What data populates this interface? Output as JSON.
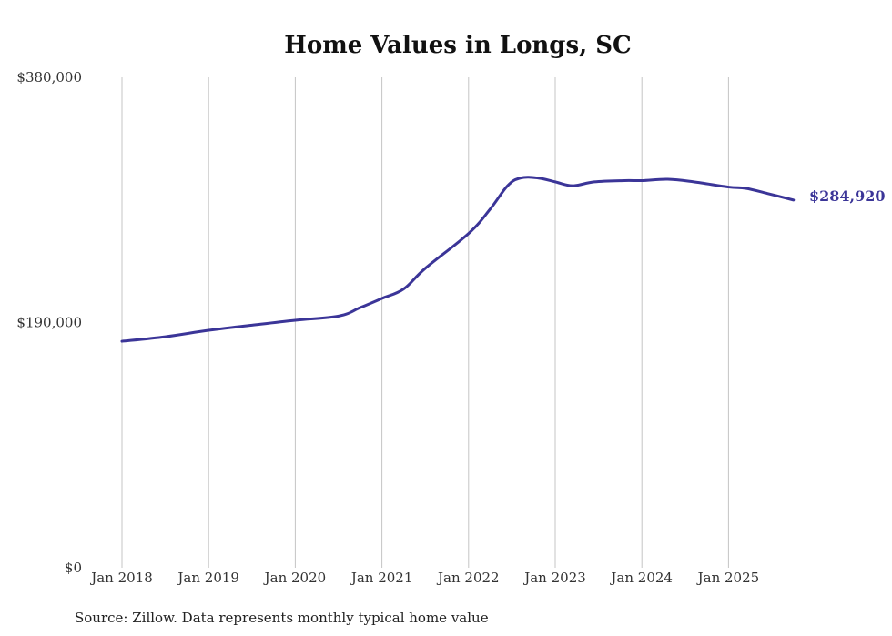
{
  "chart_data": {
    "type": "line",
    "title": "Home Values in Longs, SC",
    "xlabel": "",
    "ylabel": "",
    "ylim": [
      0,
      380000
    ],
    "xlim": [
      2018.0,
      2025.75
    ],
    "y_ticks": [
      0,
      190000,
      380000
    ],
    "y_tick_labels": [
      "$0",
      "$190,000",
      "$380,000"
    ],
    "x_ticks": [
      2018,
      2019,
      2020,
      2021,
      2022,
      2023,
      2024,
      2025
    ],
    "x_tick_labels": [
      "Jan 2018",
      "Jan 2019",
      "Jan 2020",
      "Jan 2021",
      "Jan 2022",
      "Jan 2023",
      "Jan 2024",
      "Jan 2025"
    ],
    "grid": "vertical",
    "series": [
      {
        "name": "Typical home value",
        "color": "#3b3598",
        "x": [
          2018.0,
          2018.5,
          2019.0,
          2019.5,
          2020.0,
          2020.5,
          2020.75,
          2021.0,
          2021.25,
          2021.5,
          2022.0,
          2022.25,
          2022.45,
          2022.6,
          2022.8,
          2023.0,
          2023.2,
          2023.45,
          2023.8,
          2024.0,
          2024.3,
          2024.6,
          2025.0,
          2025.2,
          2025.45,
          2025.75
        ],
        "values": [
          175500,
          179000,
          184000,
          188000,
          191800,
          195000,
          201600,
          208700,
          216000,
          232000,
          259000,
          278000,
          296000,
          302000,
          302000,
          299000,
          296000,
          299000,
          300000,
          300000,
          301000,
          299000,
          295000,
          294000,
          290000,
          284920
        ]
      }
    ],
    "end_label": "$284,920"
  },
  "footer": {
    "source": "Source: Zillow. Data represents monthly typical home value"
  }
}
